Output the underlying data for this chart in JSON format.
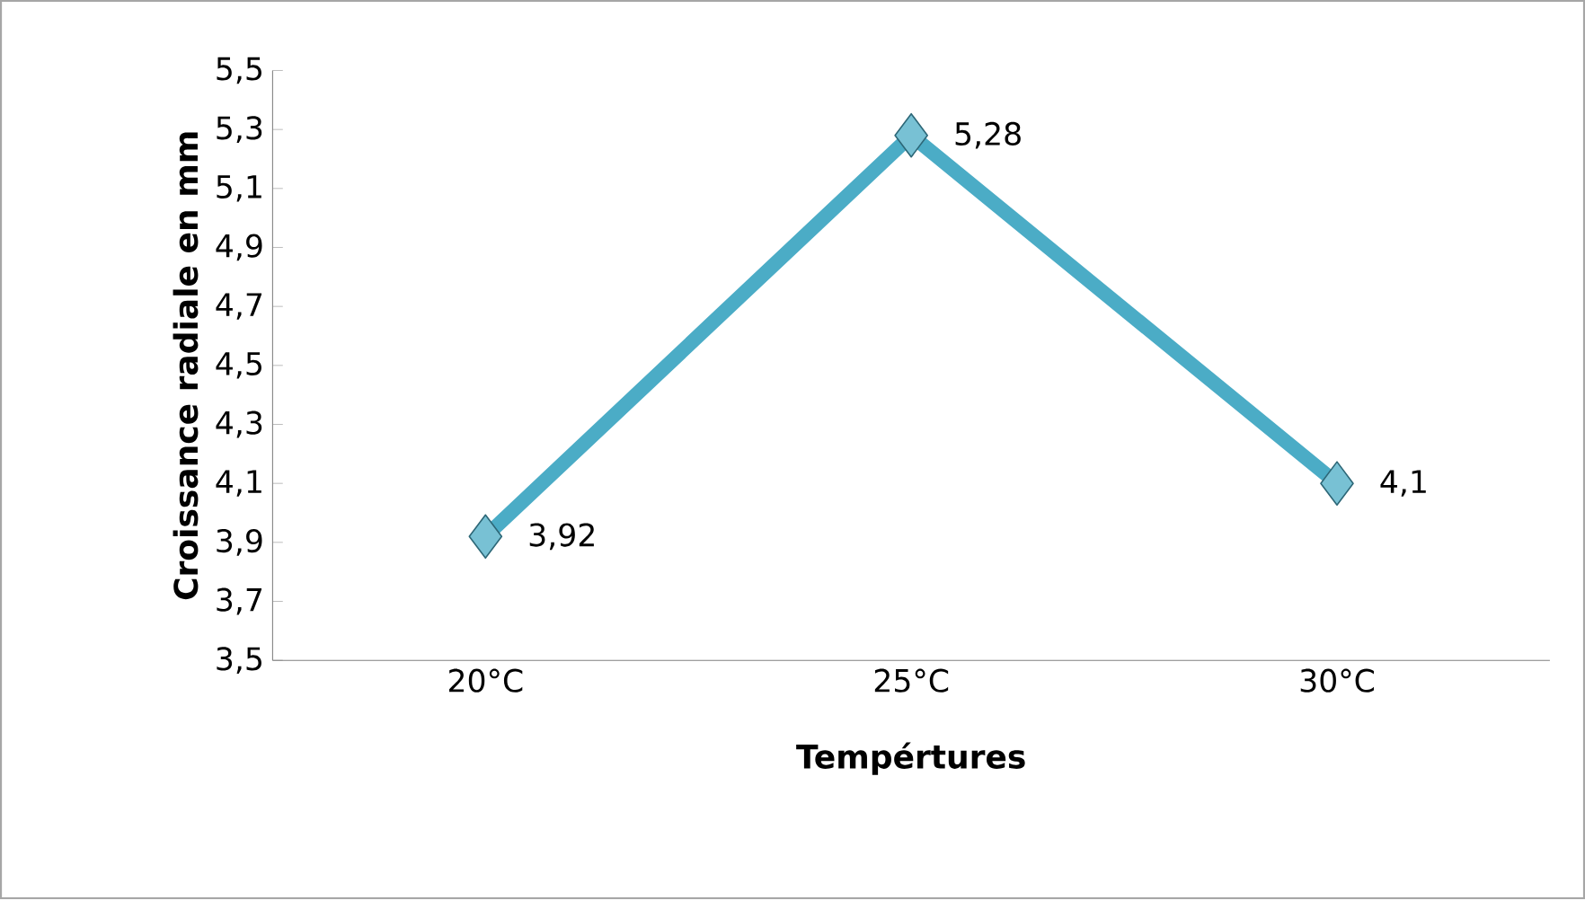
{
  "chart_data": {
    "type": "line",
    "xlabel": "Tempértures",
    "ylabel": "Croissance radiale en mm",
    "categories": [
      "20°C",
      "25°C",
      "30°C"
    ],
    "series": [
      {
        "color": "#4bacc6",
        "values": [
          3.92,
          5.28,
          4.1
        ],
        "value_labels": [
          "3,92",
          "5,28",
          "4,1"
        ]
      }
    ],
    "ylim": [
      3.5,
      5.5
    ],
    "yticks": [
      {
        "value": 3.5,
        "label": "3,5"
      },
      {
        "value": 3.7,
        "label": "3,7"
      },
      {
        "value": 3.9,
        "label": "3,9"
      },
      {
        "value": 4.1,
        "label": "4,1"
      },
      {
        "value": 4.3,
        "label": "4,3"
      },
      {
        "value": 4.5,
        "label": "4,5"
      },
      {
        "value": 4.7,
        "label": "4,7"
      },
      {
        "value": 4.9,
        "label": "4,9"
      },
      {
        "value": 5.1,
        "label": "5,1"
      },
      {
        "value": 5.3,
        "label": "5,3"
      },
      {
        "value": 5.5,
        "label": "5,5"
      }
    ],
    "grid": false,
    "marker": "diamond",
    "line_style": "solid"
  }
}
